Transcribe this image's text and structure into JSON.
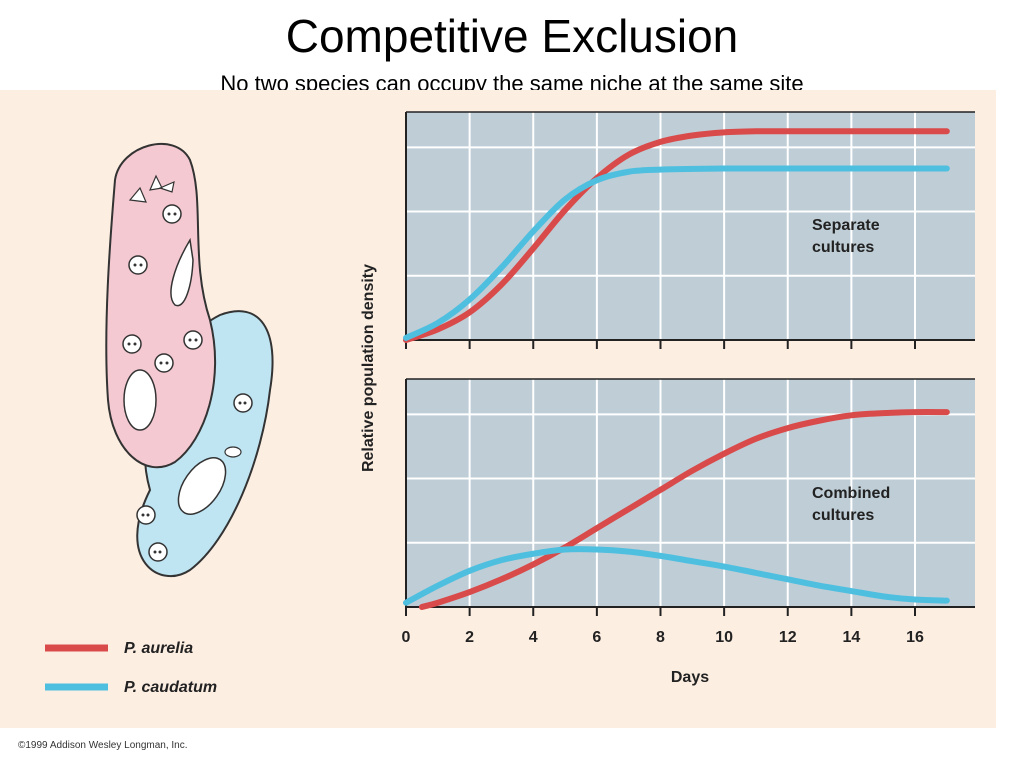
{
  "slide": {
    "title": "Competitive Exclusion",
    "subtitle": "No two species can occupy the same niche at the same site"
  },
  "copyright": "©1999 Addison Wesley Longman, Inc.",
  "colors": {
    "p_aurelia": "#d94a4a",
    "p_caudatum": "#4fbfe0",
    "plot_bg": "#bfcdd6",
    "figure_bg": "#fdeee2",
    "grid": "#ffffff"
  },
  "chart_data": {
    "type": "line",
    "xlabel": "Days",
    "ylabel": "Relative population density",
    "xlim": [
      0,
      17
    ],
    "xticks": [
      0,
      2,
      4,
      6,
      8,
      10,
      12,
      14,
      16
    ],
    "ylim": [
      0,
      1
    ],
    "grid": true,
    "legend": [
      {
        "name": "P. aurelia",
        "color": "#d94a4a"
      },
      {
        "name": "P. caudatum",
        "color": "#4fbfe0"
      }
    ],
    "panels": [
      {
        "label_lines": [
          "Separate",
          "cultures"
        ],
        "series": [
          {
            "name": "P. aurelia",
            "color": "#d94a4a",
            "x": [
              0,
              1,
              2,
              3,
              4,
              5,
              6,
              7,
              8,
              9,
              10,
              11,
              12,
              14,
              16,
              17
            ],
            "y": [
              0.0,
              0.05,
              0.13,
              0.26,
              0.43,
              0.61,
              0.76,
              0.87,
              0.93,
              0.96,
              0.975,
              0.98,
              0.98,
              0.98,
              0.98,
              0.98
            ]
          },
          {
            "name": "P. caudatum",
            "color": "#4fbfe0",
            "x": [
              0,
              1,
              2,
              3,
              4,
              5,
              6,
              7,
              8,
              10,
              12,
              14,
              16,
              17
            ],
            "y": [
              0.01,
              0.08,
              0.19,
              0.34,
              0.51,
              0.66,
              0.75,
              0.79,
              0.8,
              0.805,
              0.805,
              0.805,
              0.805,
              0.805
            ]
          }
        ]
      },
      {
        "label_lines": [
          "Combined",
          "cultures"
        ],
        "series": [
          {
            "name": "P. aurelia",
            "color": "#d94a4a",
            "x": [
              0.5,
              1,
              2,
              3,
              4,
              5,
              6,
              7,
              8,
              9,
              10,
              11,
              12,
              13,
              14,
              15,
              16,
              17
            ],
            "y": [
              0.0,
              0.02,
              0.07,
              0.13,
              0.2,
              0.28,
              0.37,
              0.46,
              0.55,
              0.64,
              0.72,
              0.79,
              0.84,
              0.875,
              0.9,
              0.91,
              0.915,
              0.915
            ]
          },
          {
            "name": "P. caudatum",
            "color": "#4fbfe0",
            "x": [
              0,
              1,
              2,
              3,
              4,
              5,
              6,
              7,
              8,
              9,
              10,
              11,
              12,
              13,
              14,
              15,
              16,
              17
            ],
            "y": [
              0.02,
              0.1,
              0.17,
              0.22,
              0.25,
              0.27,
              0.27,
              0.26,
              0.24,
              0.215,
              0.19,
              0.16,
              0.13,
              0.1,
              0.075,
              0.05,
              0.035,
              0.03
            ]
          }
        ]
      }
    ]
  }
}
